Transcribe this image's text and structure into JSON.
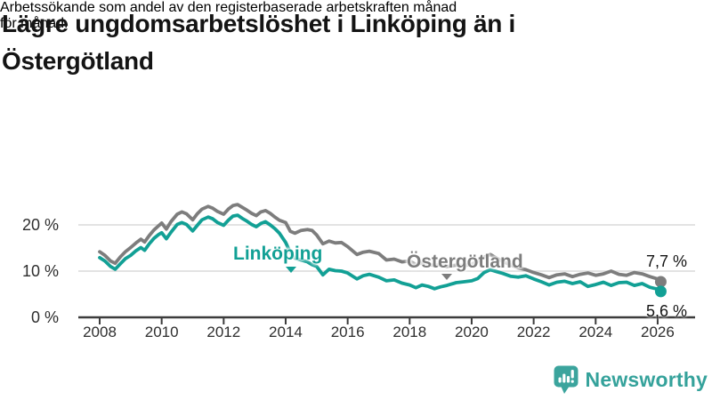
{
  "title": {
    "line1": "Lägre ungdomsarbetslöshet i Linköping än i",
    "line2": "Östergötland"
  },
  "subtitle": {
    "line1": "Arbetssökande som andel av den registerbaserade arbetskraften månad",
    "line2": "för månad."
  },
  "logo": {
    "text": "Newsworthy",
    "color": "#3ba49d"
  },
  "chart_data": {
    "type": "line",
    "title": "Lägre ungdomsarbetslöshet i Linköping än i Östergötland",
    "xlabel": "",
    "ylabel": "Arbetssökande som andel av den registerbaserade arbetskraften",
    "x_unit": "år",
    "y_unit": "%",
    "xlim": [
      2007.3,
      2027.2
    ],
    "ylim": [
      0,
      26
    ],
    "grid": "horizontal",
    "legend_position": "inline-labels",
    "x_ticks": [
      2008,
      2010,
      2012,
      2014,
      2016,
      2018,
      2020,
      2022,
      2024,
      2026
    ],
    "y_ticks": [
      {
        "value": 0,
        "label": "0 %"
      },
      {
        "value": 10,
        "label": "10 %"
      },
      {
        "value": 20,
        "label": "20 %"
      }
    ],
    "x": [
      2008.0,
      2008.17,
      2008.35,
      2008.5,
      2008.67,
      2008.83,
      2009.0,
      2009.17,
      2009.33,
      2009.45,
      2009.6,
      2009.75,
      2009.9,
      2010.0,
      2010.15,
      2010.3,
      2010.5,
      2010.65,
      2010.8,
      2011.0,
      2011.15,
      2011.3,
      2011.5,
      2011.65,
      2011.8,
      2012.0,
      2012.15,
      2012.3,
      2012.45,
      2012.6,
      2012.75,
      2012.9,
      2013.05,
      2013.2,
      2013.35,
      2013.5,
      2013.65,
      2013.8,
      2014.0,
      2014.15,
      2014.3,
      2014.5,
      2014.7,
      2014.85,
      2015.0,
      2015.2,
      2015.4,
      2015.6,
      2015.8,
      2016.0,
      2016.3,
      2016.5,
      2016.7,
      2017.0,
      2017.25,
      2017.5,
      2017.75,
      2018.0,
      2018.2,
      2018.4,
      2018.6,
      2018.8,
      2019.0,
      2019.2,
      2019.5,
      2019.75,
      2020.0,
      2020.2,
      2020.4,
      2020.6,
      2020.8,
      2021.0,
      2021.25,
      2021.5,
      2021.75,
      2022.0,
      2022.25,
      2022.5,
      2022.75,
      2023.0,
      2023.25,
      2023.5,
      2023.75,
      2024.0,
      2024.25,
      2024.5,
      2024.75,
      2025.0,
      2025.25,
      2025.5,
      2025.75,
      2026.0,
      2026.1
    ],
    "series": [
      {
        "name": "Linköping",
        "color": "#12a095",
        "values": [
          12.9,
          12.2,
          11.0,
          10.4,
          11.6,
          12.7,
          13.4,
          14.4,
          15.1,
          14.5,
          15.9,
          17.1,
          17.9,
          18.3,
          17.0,
          18.4,
          20.1,
          20.5,
          20.1,
          18.7,
          19.9,
          21.1,
          21.7,
          21.3,
          20.5,
          19.9,
          21.0,
          21.9,
          22.1,
          21.4,
          20.8,
          20.1,
          19.6,
          20.3,
          20.7,
          20.0,
          19.2,
          18.2,
          16.2,
          14.0,
          12.8,
          12.4,
          12.0,
          11.4,
          11.0,
          9.2,
          10.4,
          10.1,
          10.0,
          9.6,
          8.3,
          9.0,
          9.3,
          8.7,
          7.9,
          8.1,
          7.4,
          7.0,
          6.4,
          7.0,
          6.7,
          6.2,
          6.6,
          6.9,
          7.5,
          7.7,
          7.9,
          8.4,
          9.7,
          10.3,
          9.9,
          9.5,
          8.9,
          8.7,
          9.0,
          8.3,
          7.7,
          7.0,
          7.6,
          7.8,
          7.3,
          7.7,
          6.7,
          7.1,
          7.6,
          6.9,
          7.5,
          7.6,
          6.9,
          7.3,
          6.5,
          6.1,
          5.6
        ]
      },
      {
        "name": "Östergötland",
        "color": "#7d7d7d",
        "values": [
          14.2,
          13.4,
          12.2,
          11.7,
          13.1,
          14.2,
          15.1,
          16.1,
          16.9,
          16.3,
          17.7,
          18.9,
          19.8,
          20.4,
          19.1,
          20.7,
          22.3,
          22.8,
          22.4,
          21.1,
          22.4,
          23.4,
          24.0,
          23.6,
          22.9,
          22.3,
          23.4,
          24.2,
          24.4,
          23.8,
          23.2,
          22.5,
          22.0,
          22.8,
          23.1,
          22.5,
          21.7,
          21.0,
          20.5,
          18.6,
          18.2,
          18.8,
          19.0,
          18.8,
          17.8,
          15.9,
          16.5,
          16.1,
          16.2,
          15.3,
          13.6,
          14.1,
          14.3,
          13.8,
          12.4,
          12.6,
          12.0,
          12.2,
          11.4,
          11.8,
          11.5,
          11.2,
          11.4,
          11.0,
          11.3,
          11.2,
          11.5,
          12.1,
          13.0,
          13.6,
          12.8,
          12.1,
          11.4,
          10.7,
          10.3,
          9.7,
          9.2,
          8.6,
          9.2,
          9.4,
          8.8,
          9.3,
          9.6,
          9.1,
          9.4,
          10.0,
          9.3,
          9.1,
          9.7,
          9.4,
          8.8,
          8.3,
          7.7
        ]
      }
    ],
    "end_labels": {
      "ostergotland": "7,7 %",
      "linkoping": "5,6 %"
    },
    "colors": {
      "axis": "#3c3c3c",
      "grid": "#e3e3e3"
    }
  }
}
